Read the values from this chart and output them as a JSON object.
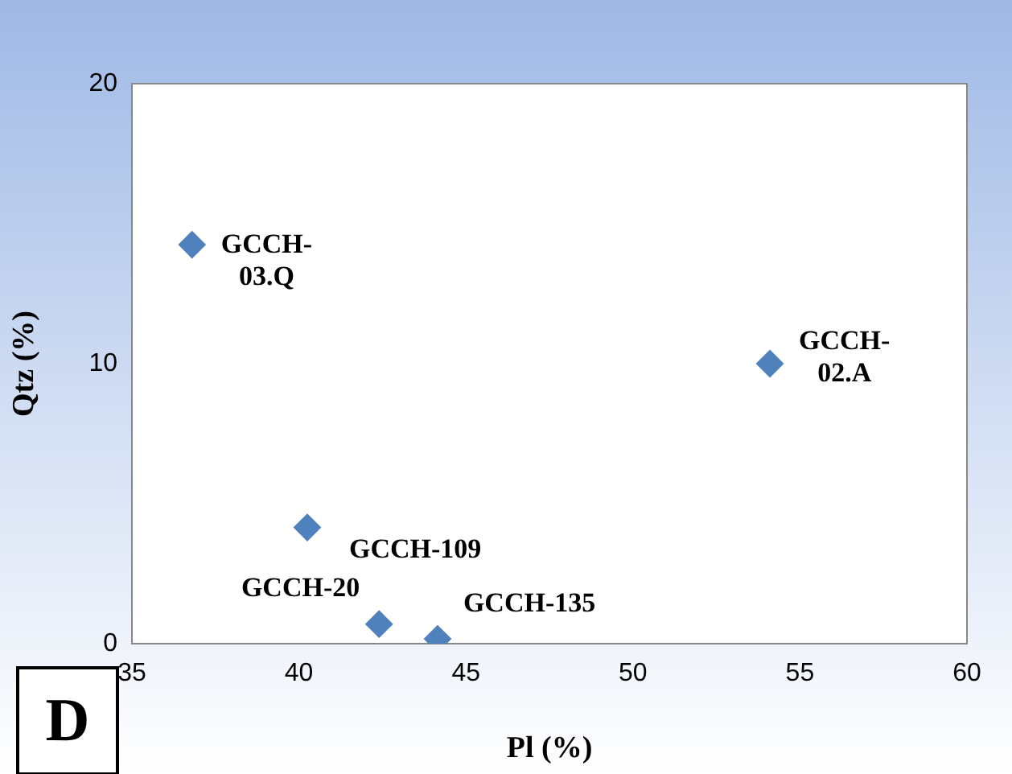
{
  "chart_data": {
    "type": "scatter",
    "xlabel": "Pl (%)",
    "ylabel": "Qtz (%)",
    "x": [
      36.8,
      54.1,
      40.25,
      42.4,
      44.15
    ],
    "values": [
      14.25,
      10.0,
      4.15,
      0.7,
      0.17
    ],
    "color": "#4f81bd",
    "marker": "diamond",
    "grid": false,
    "legend": false,
    "xlim": [
      35,
      60
    ],
    "xticks": [
      35,
      40,
      45,
      50,
      55,
      60
    ],
    "ylim": [
      0,
      20
    ],
    "yticks": [
      0,
      10,
      20
    ],
    "annotations": [
      {
        "text": "GCCH-\n03.Q",
        "x": 36.8,
        "y": 14.25
      },
      {
        "text": "GCCH-\n02.A",
        "x": 54.1,
        "y": 10.0
      },
      {
        "text": "GCCH-109",
        "x": 40.25,
        "y": 4.15
      },
      {
        "text": "GCCH-20",
        "x": 42.4,
        "y": 0.7
      },
      {
        "text": "GCCH-135",
        "x": 44.15,
        "y": 0.17
      },
      "D"
    ]
  }
}
